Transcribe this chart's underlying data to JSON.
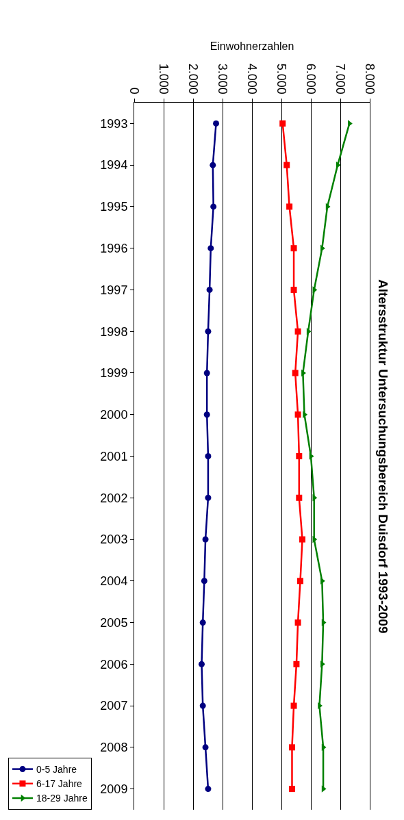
{
  "chart_data": {
    "type": "line",
    "orientation": "horizontal",
    "title": "Altersstruktur Untersuchungsbereich Duisdorf 1993-2009",
    "xlabel": "Einwohnerzahlen",
    "categories": [
      "1993",
      "1994",
      "1995",
      "1996",
      "1997",
      "1998",
      "1999",
      "2000",
      "2001",
      "2002",
      "2003",
      "2004",
      "2005",
      "2006",
      "2007",
      "2008",
      "2009"
    ],
    "series": [
      {
        "name": "0-5 Jahre",
        "color": "#000080",
        "marker": "circle",
        "values": [
          2780,
          2670,
          2690,
          2600,
          2560,
          2510,
          2470,
          2470,
          2510,
          2510,
          2420,
          2380,
          2330,
          2290,
          2330,
          2420,
          2510
        ]
      },
      {
        "name": "6-17 Jahre",
        "color": "#ff0000",
        "marker": "square",
        "values": [
          5040,
          5180,
          5270,
          5420,
          5420,
          5560,
          5470,
          5560,
          5600,
          5600,
          5710,
          5640,
          5560,
          5510,
          5420,
          5360,
          5360
        ]
      },
      {
        "name": "18-29 Jahre",
        "color": "#008000",
        "marker": "triangle",
        "values": [
          7310,
          6910,
          6560,
          6380,
          6110,
          5910,
          5730,
          5780,
          6000,
          6110,
          6110,
          6380,
          6420,
          6380,
          6290,
          6420,
          6420
        ]
      }
    ],
    "xlim": [
      0,
      8000
    ],
    "xticks": [
      0,
      {
        "value": 1000,
        "label": "1.000"
      },
      {
        "value": 2000,
        "label": "2.000"
      },
      {
        "value": 3000,
        "label": "3.000"
      },
      {
        "value": 4000,
        "label": "4.000"
      },
      {
        "value": 5000,
        "label": "5.000"
      },
      {
        "value": 6000,
        "label": "6.000"
      },
      {
        "value": 7000,
        "label": "7.000"
      },
      {
        "value": 8000,
        "label": "8.000"
      }
    ],
    "grid": "x",
    "legend": "left",
    "line_style": "solid"
  }
}
